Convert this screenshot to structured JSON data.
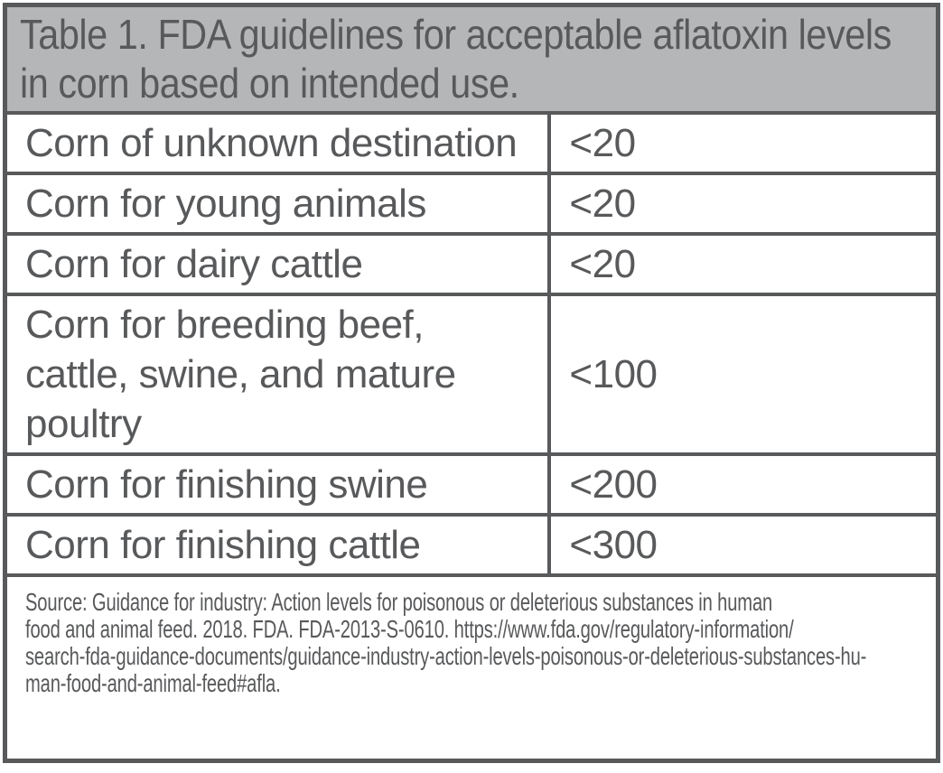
{
  "chart_data": {
    "type": "table",
    "title": "Table 1. FDA guidelines for acceptable aflatoxin levels in corn based on intended use.",
    "rows": [
      {
        "label": "Corn of unknown destination",
        "value": "<20"
      },
      {
        "label": "Corn for young animals",
        "value": "<20"
      },
      {
        "label": "Corn for dairy cattle",
        "value": "<20"
      },
      {
        "label": "Corn for breeding beef, cattle, swine, and mature poultry",
        "value": "<100"
      },
      {
        "label": "Corn for finishing swine",
        "value": "<200"
      },
      {
        "label": "Corn for finishing cattle",
        "value": "<300"
      }
    ],
    "source": "Source: Guidance for industry: Action levels for poisonous or deleterious substances in human food and animal feed. 2018. FDA. FDA-2013-S-0610. https://www.fda.gov/regulatory-information/search-fda-guidance-documents/guidance-industry-action-levels-poisonous-or-deleterious-substances-human-food-and-animal-feed#afla.",
    "source_lines": [
      "Source: Guidance for industry: Action levels for poisonous or deleterious substances in human",
      "food and animal feed. 2018. FDA. FDA-2013-S-0610. https://www.fda.gov/regulatory-information/",
      "search-fda-guidance-documents/guidance-industry-action-levels-poisonous-or-deleterious-substances-hu-",
      "man-food-and-animal-feed#afla."
    ],
    "layout": {
      "grid": "on",
      "header_position": "top",
      "value_column_alignment": "left"
    }
  },
  "colors": {
    "border": "#58595b",
    "text": "#58595b",
    "header_background": "#b4b6b8",
    "cell_background": "#ffffff"
  }
}
